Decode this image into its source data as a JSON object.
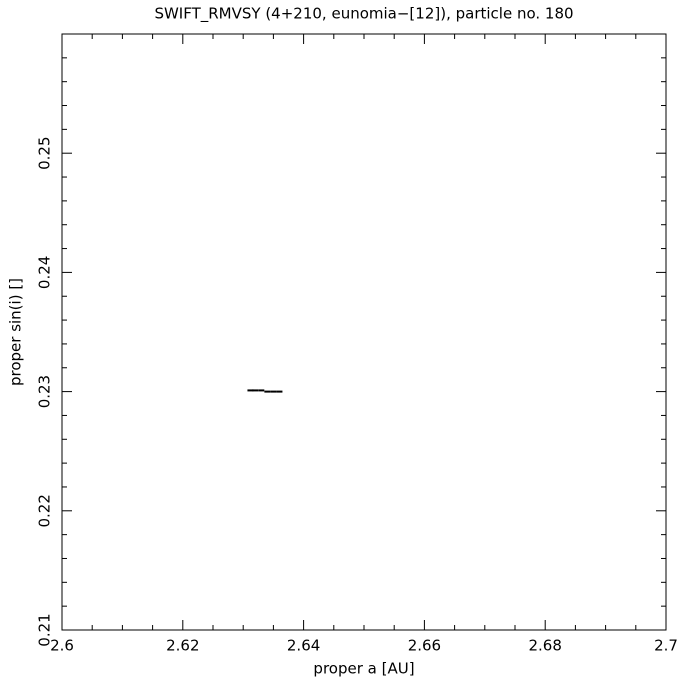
{
  "chart_data": {
    "type": "scatter",
    "title": "SWIFT_RMVSY (4+210, eunomia−[12]), particle no. 180",
    "x_label": "proper a [AU]",
    "y_label": "proper sin(i) []",
    "color": "#000000",
    "x": [
      2.6312,
      2.632,
      2.633,
      2.634,
      2.635,
      2.636
    ],
    "values": [
      0.2301,
      0.2301,
      0.2301,
      0.23,
      0.23,
      0.23
    ],
    "xlim": [
      2.6,
      2.7
    ],
    "ylim": [
      0.21,
      0.26
    ],
    "xticks": [
      2.6,
      2.62,
      2.64,
      2.66,
      2.68,
      2.7
    ],
    "yticks": [
      0.21,
      0.22,
      0.23,
      0.24,
      0.25
    ],
    "xminorticks": [
      2.605,
      2.61,
      2.615,
      2.625,
      2.63,
      2.635,
      2.645,
      2.65,
      2.655,
      2.665,
      2.67,
      2.675,
      2.685,
      2.69,
      2.695
    ],
    "yminorticks": [
      0.212,
      0.214,
      0.216,
      0.218,
      0.222,
      0.224,
      0.226,
      0.228,
      0.232,
      0.234,
      0.236,
      0.238,
      0.242,
      0.244,
      0.246,
      0.248,
      0.252,
      0.254,
      0.256,
      0.258
    ]
  }
}
